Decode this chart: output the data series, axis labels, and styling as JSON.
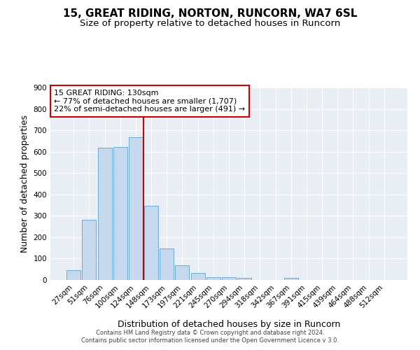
{
  "title": "15, GREAT RIDING, NORTON, RUNCORN, WA7 6SL",
  "subtitle": "Size of property relative to detached houses in Runcorn",
  "xlabel": "Distribution of detached houses by size in Runcorn",
  "ylabel": "Number of detached properties",
  "bar_labels": [
    "27sqm",
    "51sqm",
    "76sqm",
    "100sqm",
    "124sqm",
    "148sqm",
    "173sqm",
    "197sqm",
    "221sqm",
    "245sqm",
    "270sqm",
    "294sqm",
    "318sqm",
    "342sqm",
    "367sqm",
    "391sqm",
    "415sqm",
    "439sqm",
    "464sqm",
    "488sqm",
    "512sqm"
  ],
  "bar_values": [
    45,
    280,
    620,
    622,
    668,
    347,
    148,
    68,
    33,
    14,
    12,
    10,
    0,
    0,
    10,
    0,
    0,
    0,
    0,
    0,
    0
  ],
  "bar_color": "#c5d8ed",
  "bar_edge_color": "#6aacd6",
  "vline_x": 4.5,
  "vline_color": "#cc0000",
  "annotation_text": "15 GREAT RIDING: 130sqm\n← 77% of detached houses are smaller (1,707)\n22% of semi-detached houses are larger (491) →",
  "annotation_box_color": "#ffffff",
  "annotation_box_edge": "#cc0000",
  "ylim": [
    0,
    900
  ],
  "yticks": [
    0,
    100,
    200,
    300,
    400,
    500,
    600,
    700,
    800,
    900
  ],
  "bg_color": "#e8eef4",
  "grid_color": "#ffffff",
  "footer_line1": "Contains HM Land Registry data © Crown copyright and database right 2024.",
  "footer_line2": "Contains public sector information licensed under the Open Government Licence v 3.0.",
  "title_fontsize": 11,
  "subtitle_fontsize": 9.5,
  "tick_fontsize": 7.5,
  "ylabel_fontsize": 9,
  "xlabel_fontsize": 9,
  "annotation_fontsize": 8,
  "footer_fontsize": 6
}
